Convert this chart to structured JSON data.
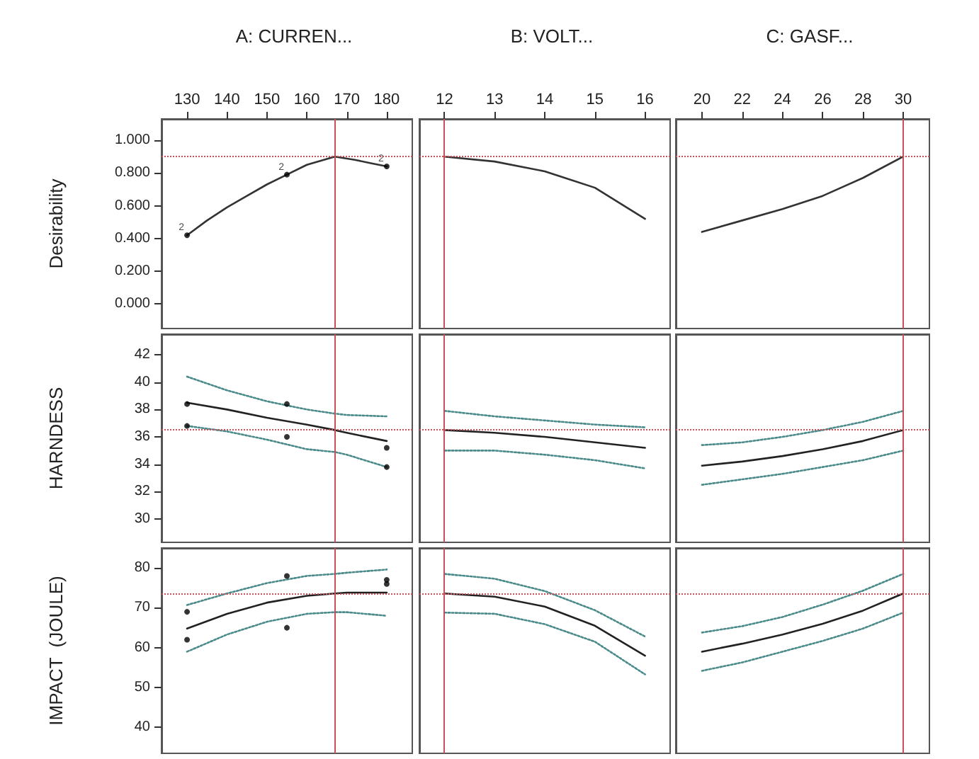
{
  "chart_data": [
    {
      "type": "line",
      "title": "A: CURREN...",
      "ylabel": "Desirability",
      "xlim": [
        123.6,
        186.4
      ],
      "xticks": [
        130,
        140,
        150,
        160,
        170,
        180
      ],
      "ylim": [
        -0.15,
        1.13
      ],
      "yticks": [
        {
          "value": 0,
          "label": "0.000"
        },
        {
          "value": 0.2,
          "label": "0.200"
        },
        {
          "value": 0.4,
          "label": "0.400"
        },
        {
          "value": 0.6,
          "label": "0.600"
        },
        {
          "value": 0.8,
          "label": "0.800"
        },
        {
          "value": 1,
          "label": "1.000"
        }
      ],
      "series": [
        {
          "type": "line",
          "color": "#333333",
          "marker": "none",
          "line_style": "solid",
          "x": [
            130,
            135,
            140,
            145,
            150,
            155,
            160,
            167,
            172,
            176,
            180
          ],
          "values": [
            0.42,
            0.51,
            0.59,
            0.66,
            0.73,
            0.79,
            0.85,
            0.9,
            0.88,
            0.86,
            0.84
          ]
        },
        {
          "type": "scatter",
          "color": "#000000",
          "marker": "circle",
          "x": [
            130,
            155,
            180
          ],
          "values": [
            0.42,
            0.79,
            0.84
          ]
        }
      ],
      "annotations": [
        {
          "text": "2",
          "x": 130,
          "y": 0.42
        },
        {
          "text": "2",
          "x": 155,
          "y": 0.79
        },
        {
          "text": "2",
          "x": 180,
          "y": 0.84
        }
      ],
      "ref_lines": [
        {
          "axis": "x",
          "value": 167,
          "color": "#c8505a",
          "line_style": "solid"
        },
        {
          "axis": "y",
          "value": 0.9,
          "color": "#c8505a",
          "line_style": "dotted"
        }
      ]
    },
    {
      "type": "line",
      "title": "B: VOLT...",
      "tick_labels": "x",
      "xlim": [
        11.5,
        16.5
      ],
      "xticks": [
        12,
        13,
        14,
        15,
        16
      ],
      "ylim": [
        -0.15,
        1.13
      ],
      "series": [
        {
          "type": "line",
          "color": "#333333",
          "marker": "none",
          "line_style": "solid",
          "x": [
            12,
            13,
            14,
            15,
            16
          ],
          "values": [
            0.9,
            0.87,
            0.81,
            0.71,
            0.52
          ]
        }
      ],
      "ref_lines": [
        {
          "axis": "x",
          "value": 12,
          "color": "#c8505a",
          "line_style": "solid"
        },
        {
          "axis": "y",
          "value": 0.9,
          "color": "#c8505a",
          "line_style": "dotted"
        }
      ]
    },
    {
      "type": "line",
      "title": "C: GASF...",
      "tick_labels": "x",
      "xlim": [
        18.7,
        31.3
      ],
      "xticks": [
        20,
        22,
        24,
        26,
        28,
        30
      ],
      "ylim": [
        -0.15,
        1.13
      ],
      "series": [
        {
          "type": "line",
          "color": "#333333",
          "marker": "none",
          "line_style": "solid",
          "x": [
            20,
            22,
            24,
            26,
            28,
            30
          ],
          "values": [
            0.44,
            0.51,
            0.58,
            0.66,
            0.77,
            0.9
          ]
        }
      ],
      "ref_lines": [
        {
          "axis": "x",
          "value": 30,
          "color": "#c8505a",
          "line_style": "solid"
        },
        {
          "axis": "y",
          "value": 0.9,
          "color": "#c8505a",
          "line_style": "dotted"
        }
      ]
    },
    {
      "type": "line",
      "ylabel": "HARNDESS",
      "tick_labels": "y",
      "xlim": [
        123.6,
        186.4
      ],
      "ylim": [
        28.3,
        43.5
      ],
      "yticks": [
        30,
        32,
        34,
        36,
        38,
        40,
        42
      ],
      "series": [
        {
          "type": "line",
          "color": "#222222",
          "marker": "none",
          "line_style": "solid",
          "x": [
            130,
            140,
            150,
            160,
            167,
            170,
            180
          ],
          "values": [
            38.5,
            38.0,
            37.4,
            36.9,
            36.5,
            36.3,
            35.7
          ]
        },
        {
          "type": "line",
          "color": "#4a8a8a",
          "marker": "none",
          "line_style": "dotted",
          "x": [
            130,
            140,
            150,
            160,
            167,
            170,
            180
          ],
          "values": [
            40.4,
            39.4,
            38.6,
            38.0,
            37.7,
            37.6,
            37.5
          ]
        },
        {
          "type": "line",
          "color": "#4a8a8a",
          "marker": "none",
          "line_style": "dotted",
          "x": [
            130,
            140,
            150,
            160,
            167,
            170,
            180
          ],
          "values": [
            36.8,
            36.4,
            35.8,
            35.1,
            34.9,
            34.7,
            33.8
          ]
        },
        {
          "type": "scatter",
          "color": "#000000",
          "marker": "circle",
          "x": [
            130,
            130,
            155,
            155,
            180,
            180
          ],
          "values": [
            38.4,
            36.8,
            38.4,
            36.0,
            35.2,
            33.8
          ]
        }
      ],
      "ref_lines": [
        {
          "axis": "x",
          "value": 167,
          "color": "#c8505a",
          "line_style": "solid"
        },
        {
          "axis": "y",
          "value": 36.5,
          "color": "#c8505a",
          "line_style": "dotted"
        }
      ]
    },
    {
      "type": "line",
      "tick_labels": false,
      "xlim": [
        11.5,
        16.5
      ],
      "ylim": [
        28.3,
        43.5
      ],
      "series": [
        {
          "type": "line",
          "color": "#222222",
          "marker": "none",
          "line_style": "solid",
          "x": [
            12,
            13,
            14,
            15,
            16
          ],
          "values": [
            36.5,
            36.3,
            36.0,
            35.6,
            35.2
          ]
        },
        {
          "type": "line",
          "color": "#4a8a8a",
          "marker": "none",
          "line_style": "dotted",
          "x": [
            12,
            13,
            14,
            15,
            16
          ],
          "values": [
            37.9,
            37.5,
            37.2,
            36.9,
            36.7
          ]
        },
        {
          "type": "line",
          "color": "#4a8a8a",
          "marker": "none",
          "line_style": "dotted",
          "x": [
            12,
            13,
            14,
            15,
            16
          ],
          "values": [
            35.0,
            35.0,
            34.7,
            34.3,
            33.7
          ]
        }
      ],
      "ref_lines": [
        {
          "axis": "x",
          "value": 12,
          "color": "#c8505a",
          "line_style": "solid"
        },
        {
          "axis": "y",
          "value": 36.5,
          "color": "#c8505a",
          "line_style": "dotted"
        }
      ]
    },
    {
      "type": "line",
      "tick_labels": false,
      "xlim": [
        18.7,
        31.3
      ],
      "ylim": [
        28.3,
        43.5
      ],
      "series": [
        {
          "type": "line",
          "color": "#222222",
          "marker": "none",
          "line_style": "solid",
          "x": [
            20,
            22,
            24,
            26,
            28,
            30
          ],
          "values": [
            33.9,
            34.2,
            34.6,
            35.1,
            35.7,
            36.5
          ]
        },
        {
          "type": "line",
          "color": "#4a8a8a",
          "marker": "none",
          "line_style": "dotted",
          "x": [
            20,
            22,
            24,
            26,
            28,
            30
          ],
          "values": [
            35.4,
            35.6,
            36.0,
            36.5,
            37.1,
            37.9
          ]
        },
        {
          "type": "line",
          "color": "#4a8a8a",
          "marker": "none",
          "line_style": "dotted",
          "x": [
            20,
            22,
            24,
            26,
            28,
            30
          ],
          "values": [
            32.5,
            32.9,
            33.3,
            33.8,
            34.3,
            35.0
          ]
        }
      ],
      "ref_lines": [
        {
          "axis": "x",
          "value": 30,
          "color": "#c8505a",
          "line_style": "solid"
        },
        {
          "axis": "y",
          "value": 36.5,
          "color": "#c8505a",
          "line_style": "dotted"
        }
      ]
    },
    {
      "type": "line",
      "ylabel": "IMPACT  (JOULE)",
      "tick_labels": "y",
      "xlim": [
        123.6,
        186.4
      ],
      "ylim": [
        33.5,
        85
      ],
      "yticks": [
        40,
        50,
        60,
        70,
        80
      ],
      "series": [
        {
          "type": "line",
          "color": "#222222",
          "marker": "none",
          "line_style": "solid",
          "x": [
            130,
            140,
            150,
            160,
            167,
            170,
            180
          ],
          "values": [
            64.8,
            68.5,
            71.3,
            73.0,
            73.6,
            73.8,
            73.8
          ]
        },
        {
          "type": "line",
          "color": "#4a8a8a",
          "marker": "none",
          "line_style": "dotted",
          "x": [
            130,
            140,
            150,
            160,
            167,
            170,
            180
          ],
          "values": [
            70.7,
            73.6,
            76.2,
            78.0,
            78.5,
            78.8,
            79.6
          ]
        },
        {
          "type": "line",
          "color": "#4a8a8a",
          "marker": "none",
          "line_style": "dotted",
          "x": [
            130,
            140,
            150,
            160,
            167,
            170,
            180
          ],
          "values": [
            59.0,
            63.3,
            66.5,
            68.5,
            68.9,
            68.9,
            68.0
          ]
        },
        {
          "type": "scatter",
          "color": "#000000",
          "marker": "circle",
          "x": [
            130,
            130,
            155,
            155,
            180,
            180
          ],
          "values": [
            69,
            62,
            78,
            65,
            77,
            76
          ]
        }
      ],
      "ref_lines": [
        {
          "axis": "x",
          "value": 167,
          "color": "#c8505a",
          "line_style": "solid"
        },
        {
          "axis": "y",
          "value": 73.6,
          "color": "#c8505a",
          "line_style": "dotted"
        }
      ]
    },
    {
      "type": "line",
      "tick_labels": false,
      "xlim": [
        11.5,
        16.5
      ],
      "ylim": [
        33.5,
        85
      ],
      "series": [
        {
          "type": "line",
          "color": "#222222",
          "marker": "none",
          "line_style": "solid",
          "x": [
            12,
            13,
            14,
            15,
            16
          ],
          "values": [
            73.6,
            72.8,
            70.3,
            65.5,
            58.0
          ]
        },
        {
          "type": "line",
          "color": "#4a8a8a",
          "marker": "none",
          "line_style": "dotted",
          "x": [
            12,
            13,
            14,
            15,
            16
          ],
          "values": [
            78.5,
            77.3,
            74.2,
            69.4,
            62.8
          ]
        },
        {
          "type": "line",
          "color": "#4a8a8a",
          "marker": "none",
          "line_style": "dotted",
          "x": [
            12,
            13,
            14,
            15,
            16
          ],
          "values": [
            68.8,
            68.5,
            65.9,
            61.5,
            53.3
          ]
        }
      ],
      "ref_lines": [
        {
          "axis": "x",
          "value": 12,
          "color": "#c8505a",
          "line_style": "solid"
        },
        {
          "axis": "y",
          "value": 73.6,
          "color": "#c8505a",
          "line_style": "dotted"
        }
      ]
    },
    {
      "type": "line",
      "tick_labels": false,
      "xlim": [
        18.7,
        31.3
      ],
      "ylim": [
        33.5,
        85
      ],
      "series": [
        {
          "type": "line",
          "color": "#222222",
          "marker": "none",
          "line_style": "solid",
          "x": [
            20,
            22,
            24,
            26,
            28,
            30
          ],
          "values": [
            59.0,
            61.0,
            63.3,
            66.0,
            69.3,
            73.6
          ]
        },
        {
          "type": "line",
          "color": "#4a8a8a",
          "marker": "none",
          "line_style": "dotted",
          "x": [
            20,
            22,
            24,
            26,
            28,
            30
          ],
          "values": [
            63.8,
            65.4,
            67.7,
            70.8,
            74.3,
            78.5
          ]
        },
        {
          "type": "line",
          "color": "#4a8a8a",
          "marker": "none",
          "line_style": "dotted",
          "x": [
            20,
            22,
            24,
            26,
            28,
            30
          ],
          "values": [
            54.2,
            56.3,
            59.0,
            61.7,
            64.8,
            68.8
          ]
        }
      ],
      "ref_lines": [
        {
          "axis": "x",
          "value": 30,
          "color": "#c8505a",
          "line_style": "solid"
        },
        {
          "axis": "y",
          "value": 73.6,
          "color": "#c8505a",
          "line_style": "dotted"
        }
      ]
    }
  ]
}
